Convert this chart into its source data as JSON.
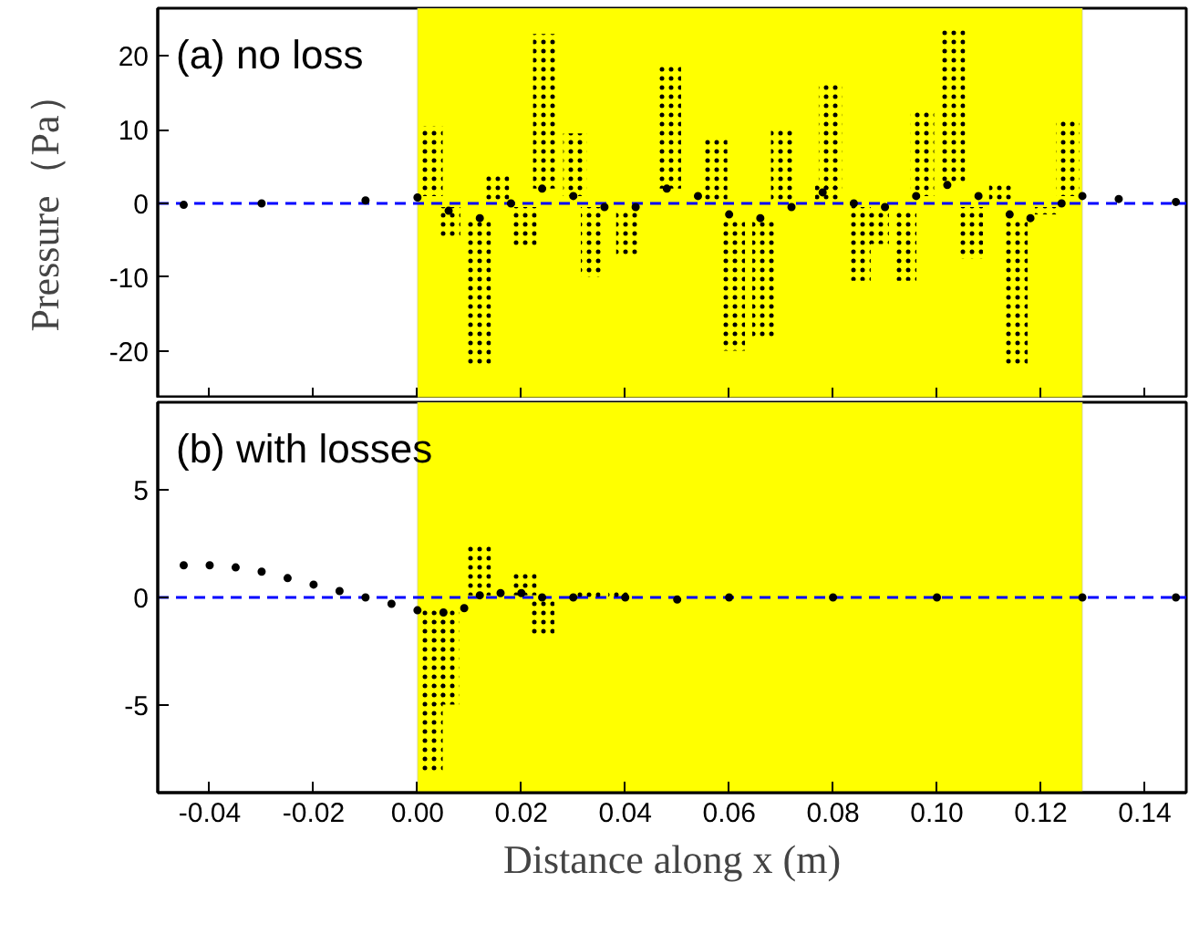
{
  "chart_data": [
    {
      "type": "bar",
      "ylabel": "Pressure（Pa）",
      "annotations": [
        "(a) no loss"
      ],
      "tick_labels": "y",
      "grid": false,
      "xlim": [
        -0.05,
        0.148
      ],
      "ylim": [
        -26.5,
        26.5
      ],
      "yticks": [
        -20,
        -10,
        0,
        10,
        20
      ],
      "xticks": [
        {
          "value": -0.04,
          "label": null
        },
        {
          "value": -0.02,
          "label": null
        },
        {
          "value": 0,
          "label": null
        },
        {
          "value": 0.02,
          "label": null
        },
        {
          "value": 0.04,
          "label": null
        },
        {
          "value": 0.06,
          "label": null
        },
        {
          "value": 0.08,
          "label": null
        },
        {
          "value": 0.1,
          "label": null
        },
        {
          "value": 0.12,
          "label": null
        },
        {
          "value": 0.14,
          "label": null
        }
      ],
      "bands": [
        {
          "axis": "x",
          "from": 0,
          "to": 0.128,
          "color": "#ffff00"
        }
      ],
      "ref_lines": [
        {
          "axis": "y",
          "value": 0,
          "color": "#0000ff",
          "line_style": "dashed"
        }
      ],
      "series": [
        {
          "color": "#000000",
          "x": [
            0.0026,
            0.006,
            0.0119,
            0.0154,
            0.0207,
            0.0245,
            0.0303,
            0.0337,
            0.0405,
            0.0485,
            0.0574,
            0.0608,
            0.0667,
            0.0703,
            0.0788,
            0.0795,
            0.085,
            0.0885,
            0.0938,
            0.0972,
            0.1032,
            0.1066,
            0.1123,
            0.1152,
            0.1211,
            0.1252
          ],
          "base": [
            1,
            -0.5,
            -2,
            0.5,
            -0.5,
            2,
            1,
            -0.5,
            -1,
            2,
            0.5,
            -2,
            -2,
            0.5,
            0.5,
            2,
            -0.5,
            -1,
            -1,
            1,
            2.5,
            -0.5,
            0.5,
            -2,
            -0.5,
            1
          ],
          "values": [
            9.5,
            -4,
            -20,
            3.5,
            -5.5,
            21,
            8.5,
            -9.5,
            -6,
            17,
            8.5,
            -18,
            -16.5,
            9.5,
            2,
            14.5,
            -10,
            -4.5,
            -9.5,
            11.5,
            21,
            -7,
            2,
            -20,
            -1,
            10.5
          ]
        },
        {
          "type": "scatter",
          "marker": "circle",
          "color": "#000000",
          "x": [
            -0.045,
            -0.03,
            -0.01,
            0,
            0.006,
            0.012,
            0.018,
            0.024,
            0.03,
            0.036,
            0.042,
            0.048,
            0.054,
            0.06,
            0.066,
            0.072,
            0.078,
            0.084,
            0.09,
            0.096,
            0.102,
            0.108,
            0.114,
            0.118,
            0.124,
            0.128,
            0.135,
            0.146
          ],
          "values": [
            -0.2,
            0,
            0.4,
            0.8,
            -1,
            -2,
            0,
            2,
            1,
            -0.5,
            -0.5,
            2,
            1,
            -1.5,
            -2,
            -0.5,
            1.5,
            0,
            -0.5,
            1,
            2.5,
            1,
            -1.5,
            -2,
            0,
            1,
            0.6,
            0.2
          ]
        }
      ]
    },
    {
      "type": "bar",
      "xlabel": "Distance along x (m)",
      "annotations": [
        "(b) with losses"
      ],
      "grid": false,
      "xlim": [
        -0.05,
        0.148
      ],
      "ylim": [
        -9.1,
        9.1
      ],
      "yticks": [
        -5,
        0,
        5
      ],
      "xticks": [
        {
          "value": -0.04,
          "label": "-0.04"
        },
        {
          "value": -0.02,
          "label": "-0.02"
        },
        {
          "value": 0,
          "label": "0.00"
        },
        {
          "value": 0.02,
          "label": "0.02"
        },
        {
          "value": 0.04,
          "label": "0.04"
        },
        {
          "value": 0.06,
          "label": "0.06"
        },
        {
          "value": 0.08,
          "label": "0.08"
        },
        {
          "value": 0.1,
          "label": "0.10"
        },
        {
          "value": 0.12,
          "label": "0.12"
        },
        {
          "value": 0.14,
          "label": "0.14"
        }
      ],
      "bands": [
        {
          "axis": "x",
          "from": 0,
          "to": 0.128,
          "color": "#ffff00"
        }
      ],
      "ref_lines": [
        {
          "axis": "y",
          "value": 0,
          "color": "#0000ff",
          "line_style": "dashed"
        }
      ],
      "series": [
        {
          "color": "#000000",
          "x": [
            0.0026,
            0.0058,
            0.0119,
            0.0207,
            0.0241,
            0.033,
            0.039
          ],
          "base": [
            -0.5,
            -0.5,
            0.1,
            0.1,
            0,
            0,
            0
          ],
          "values": [
            -7.7,
            -4.5,
            2.4,
            1.1,
            -1.8,
            0.3,
            0.3
          ]
        },
        {
          "type": "scatter",
          "marker": "circle",
          "color": "#000000",
          "x": [
            -0.045,
            -0.04,
            -0.035,
            -0.03,
            -0.025,
            -0.02,
            -0.015,
            -0.01,
            -0.005,
            0,
            0.005,
            0.009,
            0.012,
            0.016,
            0.02,
            0.024,
            0.03,
            0.04,
            0.05,
            0.06,
            0.08,
            0.1,
            0.128,
            0.146
          ],
          "values": [
            1.5,
            1.5,
            1.4,
            1.2,
            0.9,
            0.6,
            0.3,
            0,
            -0.3,
            -0.6,
            -0.7,
            -0.5,
            0.1,
            0.2,
            0.2,
            0,
            0,
            0,
            -0.1,
            0,
            0,
            0,
            0,
            0
          ]
        }
      ]
    }
  ]
}
